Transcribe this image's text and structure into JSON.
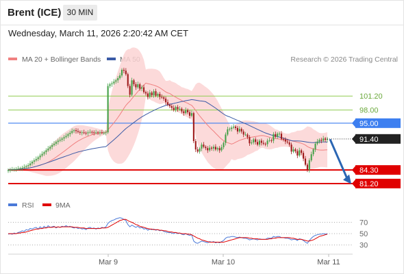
{
  "header": {
    "symbol": "Brent (ICE)",
    "timeframe": "30 MIN"
  },
  "timestamp": "Wednesday, March 11, 2026 2:20:42 AM CET",
  "credit": "Research © 2026 Trading Central",
  "colors": {
    "candle_up": "#43a047",
    "candle_down": "#9e1b1b",
    "ma20": "#f08080",
    "bollinger_fill": "#fbd3d3",
    "ma50": "#3a5aa6",
    "resistance": "#8fcc50",
    "pivot": "#3d7ff0",
    "support": "#e00000",
    "rsi": "#4a79d8",
    "rsi_ma": "#e00000",
    "last_price_bg": "#222222",
    "forecast_arrow": "#2b66b3"
  },
  "chart_data": [
    {
      "type": "candlestick",
      "xlabel": "",
      "ylabel": "",
      "x_ticks": [
        "Mar 9",
        "Mar 10",
        "Mar 11"
      ],
      "ylim": [
        79.0,
        107.5
      ],
      "legend": [
        {
          "name": "MA 20 + Bollinger Bands",
          "color": "#f08080"
        },
        {
          "name": "MA 50",
          "color": "#3a5aa6"
        }
      ],
      "legend_position": "top-left",
      "levels": [
        {
          "value": 101.2,
          "label": "101.20",
          "color": "#8fcc50",
          "kind": "resistance"
        },
        {
          "value": 98.0,
          "label": "98.00",
          "color": "#8fcc50",
          "kind": "resistance"
        },
        {
          "value": 95.0,
          "label": "95.00",
          "color": "#3d7ff0",
          "kind": "pivot"
        },
        {
          "value": 84.3,
          "label": "84.30",
          "color": "#e00000",
          "kind": "support"
        },
        {
          "value": 81.2,
          "label": "81.20",
          "color": "#e00000",
          "kind": "support"
        }
      ],
      "last_price": {
        "value": 91.4,
        "label": "91.40"
      },
      "forecast": {
        "direction": "down",
        "from": 91.4,
        "to": 81.4
      },
      "close": [
        84.3,
        84.35,
        84.4,
        84.5,
        84.5,
        84.6,
        84.7,
        84.8,
        85.0,
        85.2,
        85.4,
        85.8,
        86.2,
        86.5,
        86.8,
        87.2,
        87.6,
        88.0,
        88.4,
        88.8,
        89.2,
        89.6,
        90.0,
        90.3,
        90.7,
        91.0,
        91.2,
        91.5,
        91.8,
        92.1,
        92.5,
        92.8,
        93.2,
        93.4,
        93.2,
        93.0,
        92.8,
        92.9,
        92.8,
        92.7,
        92.9,
        93.0,
        92.9,
        92.8,
        92.9,
        92.8,
        92.9,
        92.8,
        92.8,
        92.9,
        103.5,
        103.9,
        104.1,
        104.5,
        104.8,
        105.3,
        105.9,
        107.2,
        107.0,
        106.2,
        103.5,
        101.5,
        104.8,
        103.9,
        103.2,
        103.9,
        102.9,
        103.2,
        102.1,
        101.8,
        101.0,
        102.0,
        101.4,
        102.3,
        101.3,
        101.7,
        101.0,
        100.9,
        100.6,
        99.8,
        99.2,
        98.9,
        98.5,
        98.0,
        98.7,
        98.2,
        98.3,
        97.7,
        97.3,
        98.0,
        97.5,
        96.7,
        97.3,
        90.9,
        89.0,
        88.5,
        89.2,
        90.1,
        89.6,
        89.3,
        88.8,
        89.4,
        89.2,
        89.6,
        89.0,
        89.3,
        88.8,
        89.5,
        90.5,
        92.4,
        93.6,
        93.7,
        94.0,
        94.2,
        93.9,
        93.1,
        93.7,
        93.1,
        92.4,
        92.4,
        91.8,
        90.4,
        90.6,
        91.3,
        90.7,
        90.1,
        91.0,
        90.5,
        90.3,
        90.2,
        91.0,
        91.1,
        91.0,
        92.5,
        91.9,
        92.6,
        92.6,
        91.4,
        91.3,
        90.8,
        90.6,
        90.1,
        88.5,
        89.0,
        88.6,
        87.6,
        88.8,
        88.2,
        86.9,
        85.5,
        84.3,
        86.5,
        87.9,
        89.0,
        90.3,
        90.8,
        91.2,
        91.0,
        91.5,
        91.2,
        91.4
      ],
      "rsi_ylim": [
        20,
        85
      ],
      "rsi_ticks": [
        70,
        50,
        30
      ],
      "rsi_legend": [
        {
          "name": "RSI",
          "color": "#4a79d8"
        },
        {
          "name": "9MA",
          "color": "#e00000"
        }
      ],
      "rsi": [
        49,
        50,
        49,
        51,
        50,
        52,
        53,
        55,
        54,
        57,
        56,
        59,
        58,
        60,
        61,
        58,
        62,
        59,
        63,
        60,
        64,
        61,
        62,
        63,
        60,
        62,
        61,
        63,
        62,
        64,
        62,
        63,
        61,
        60,
        61,
        59,
        60,
        58,
        59,
        57,
        60,
        61,
        59,
        60,
        58,
        60,
        59,
        61,
        60,
        62,
        68,
        71,
        73,
        74,
        76,
        77,
        78,
        77,
        75,
        73,
        66,
        62,
        65,
        63,
        61,
        63,
        60,
        61,
        58,
        59,
        56,
        58,
        57,
        58,
        56,
        57,
        55,
        56,
        54,
        53,
        52,
        52,
        51,
        50,
        52,
        50,
        51,
        49,
        48,
        50,
        48,
        47,
        48,
        37,
        34,
        33,
        35,
        37,
        36,
        35,
        34,
        36,
        35,
        36,
        34,
        35,
        34,
        36,
        38,
        42,
        44,
        44,
        45,
        45,
        44,
        43,
        44,
        43,
        42,
        42,
        41,
        39,
        40,
        41,
        40,
        39,
        41,
        40,
        40,
        40,
        42,
        42,
        42,
        45,
        44,
        45,
        45,
        43,
        43,
        42,
        42,
        41,
        39,
        40,
        40,
        38,
        41,
        40,
        38,
        35,
        33,
        38,
        42,
        45,
        47,
        48,
        49,
        49,
        50,
        49,
        50
      ],
      "rsi_ma": [
        50,
        50,
        50,
        50,
        50,
        51,
        51,
        52,
        52,
        53,
        54,
        55,
        56,
        57,
        58,
        58,
        59,
        59,
        60,
        60,
        61,
        61,
        61,
        62,
        61,
        62,
        61,
        62,
        62,
        62,
        62,
        62,
        62,
        61,
        61,
        61,
        60,
        60,
        60,
        59,
        59,
        59,
        59,
        59,
        59,
        59,
        59,
        60,
        60,
        60,
        61,
        63,
        65,
        67,
        69,
        71,
        73,
        74,
        75,
        75,
        73,
        71,
        70,
        68,
        66,
        65,
        63,
        62,
        61,
        60,
        59,
        58,
        58,
        57,
        57,
        57,
        56,
        56,
        55,
        55,
        54,
        53,
        53,
        52,
        52,
        51,
        51,
        50,
        50,
        50,
        49,
        49,
        48,
        46,
        44,
        42,
        41,
        39,
        38,
        37,
        36,
        35,
        35,
        35,
        35,
        35,
        35,
        35,
        35,
        36,
        37,
        38,
        39,
        40,
        41,
        42,
        43,
        43,
        43,
        43,
        43,
        42,
        42,
        41,
        41,
        41,
        40,
        40,
        40,
        40,
        40,
        41,
        41,
        42,
        42,
        43,
        43,
        43,
        43,
        43,
        43,
        43,
        42,
        42,
        41,
        40,
        40,
        40,
        39,
        38,
        37,
        37,
        38,
        39,
        41,
        43,
        45,
        46,
        47,
        48,
        49
      ]
    }
  ]
}
